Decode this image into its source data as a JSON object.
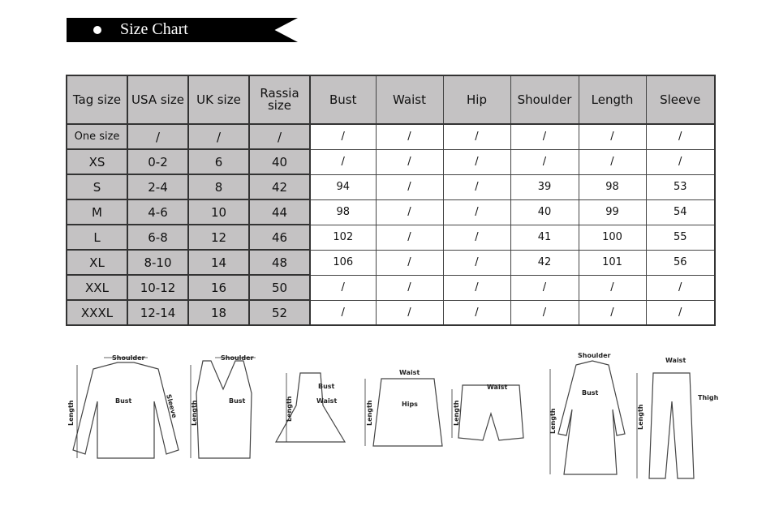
{
  "title": "Size Chart",
  "table": {
    "headers": [
      "Tag size",
      "USA size",
      "UK size",
      "Rassia size",
      "Bust",
      "Waist",
      "Hip",
      "Shoulder",
      "Length",
      "Sleeve"
    ],
    "rows": [
      [
        "One size",
        "/",
        "/",
        "/",
        "/",
        "/",
        "/",
        "/",
        "/",
        "/"
      ],
      [
        "XS",
        "0-2",
        "6",
        "40",
        "/",
        "/",
        "/",
        "/",
        "/",
        "/"
      ],
      [
        "S",
        "2-4",
        "8",
        "42",
        "94",
        "/",
        "/",
        "39",
        "98",
        "53"
      ],
      [
        "M",
        "4-6",
        "10",
        "44",
        "98",
        "/",
        "/",
        "40",
        "99",
        "54"
      ],
      [
        "L",
        "6-8",
        "12",
        "46",
        "102",
        "/",
        "/",
        "41",
        "100",
        "55"
      ],
      [
        "XL",
        "8-10",
        "14",
        "48",
        "106",
        "/",
        "/",
        "42",
        "101",
        "56"
      ],
      [
        "XXL",
        "10-12",
        "16",
        "50",
        "/",
        "/",
        "/",
        "/",
        "/",
        "/"
      ],
      [
        "XXXL",
        "12-14",
        "18",
        "52",
        "/",
        "/",
        "/",
        "/",
        "/",
        "/"
      ]
    ]
  },
  "labels": {
    "shoulder": "Shoulder",
    "bust": "Bust",
    "sleeve": "Sleeve",
    "length": "Length",
    "waist": "Waist",
    "hips": "Hips",
    "thigh": "Thigh"
  },
  "colors": {
    "header_bg": "#c4c2c3",
    "banner": "#000000"
  }
}
